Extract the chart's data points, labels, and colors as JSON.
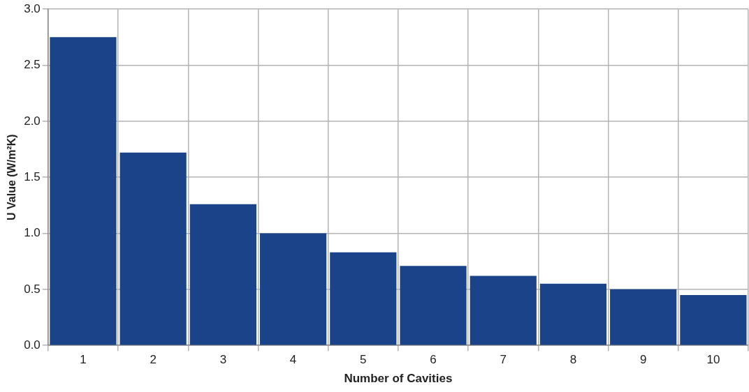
{
  "chart_data": {
    "type": "bar",
    "xlabel": "Number of Cavities",
    "ylabel": "U Value (W/m²K)",
    "categories": [
      "1",
      "2",
      "3",
      "4",
      "5",
      "6",
      "7",
      "8",
      "9",
      "10"
    ],
    "values": [
      2.75,
      1.72,
      1.26,
      1.0,
      0.83,
      0.71,
      0.62,
      0.55,
      0.5,
      0.45
    ],
    "color": "#1a4389",
    "ylim": [
      0,
      3
    ],
    "yticks": [
      {
        "value": 0,
        "label": "0.0"
      },
      {
        "value": 0.5,
        "label": "0.5"
      },
      {
        "value": 1,
        "label": "1.0"
      },
      {
        "value": 1.5,
        "label": "1.5"
      },
      {
        "value": 2,
        "label": "2.0"
      },
      {
        "value": 2.5,
        "label": "2.5"
      },
      {
        "value": 3,
        "label": "3.0"
      }
    ],
    "grid": true,
    "legend": false
  }
}
